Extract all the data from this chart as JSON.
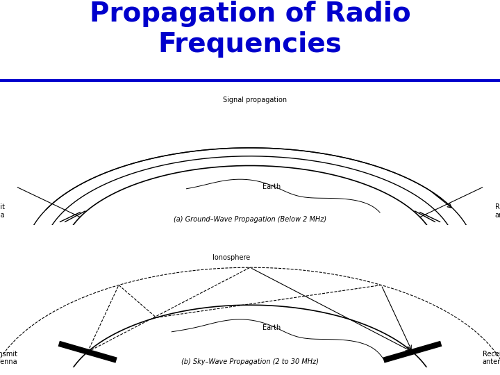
{
  "title": "Propagation of Radio\nFrequencies",
  "title_color": "#0000CC",
  "title_fontsize": 28,
  "title_fontweight": "bold",
  "separator_color": "#0000CC",
  "separator_lw": 3,
  "bg_color": "#FFFFFF",
  "diagram_color": "#000000",
  "label_a": "(a) Ground–Wave Propagation (Below 2 MHz)",
  "label_b": "(b) Sky–Wave Propagation (2 to 30 MHz)",
  "signal_prop_label": "Signal propagation",
  "transmit_label": "Transmit\nantenna",
  "receive_label": "Receive\nantenna",
  "earth_label": "Earth",
  "ionosphere_label": "Ionosphere"
}
